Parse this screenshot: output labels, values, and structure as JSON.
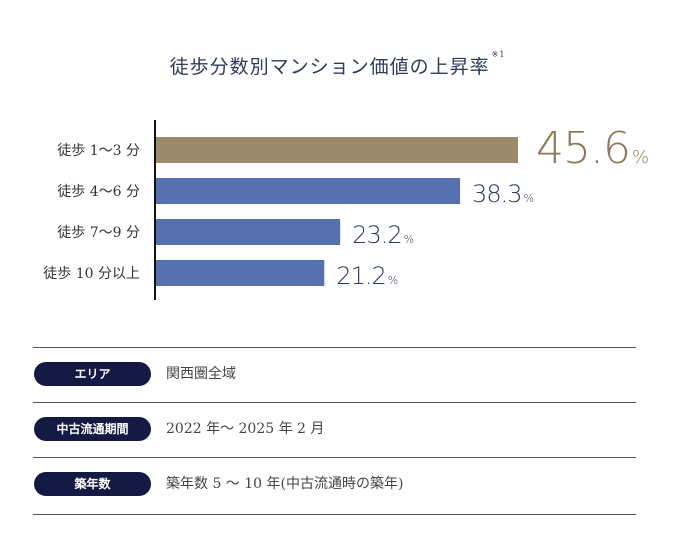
{
  "title": "徒歩分数別マンション価値の上昇率",
  "title_note": "※1",
  "chart_data": {
    "type": "bar",
    "orientation": "horizontal",
    "categories": [
      "徒歩 1～3 分",
      "徒歩 4～6 分",
      "徒歩 7～9 分",
      "徒歩 10 分以上"
    ],
    "values": [
      45.6,
      38.3,
      23.2,
      21.2
    ],
    "value_labels": [
      "45.6",
      "38.3",
      "23.2",
      "21.2"
    ],
    "unit": "%",
    "xlim": [
      0,
      60
    ],
    "colors": [
      "#9b8a6b",
      "#5770b0",
      "#5770b0",
      "#5770b0"
    ],
    "highlight_color": "#8b7a5a",
    "label_color": "#2f3a5e",
    "grid": false,
    "legend": "none"
  },
  "info": [
    {
      "label": "エリア",
      "value": "関西圏全域"
    },
    {
      "label": "中古流通期間",
      "value": "2022 年～ 2025 年 2 月"
    },
    {
      "label": "築年数",
      "value": "築年数 5 ～ 10 年(中古流通時の築年)"
    }
  ]
}
